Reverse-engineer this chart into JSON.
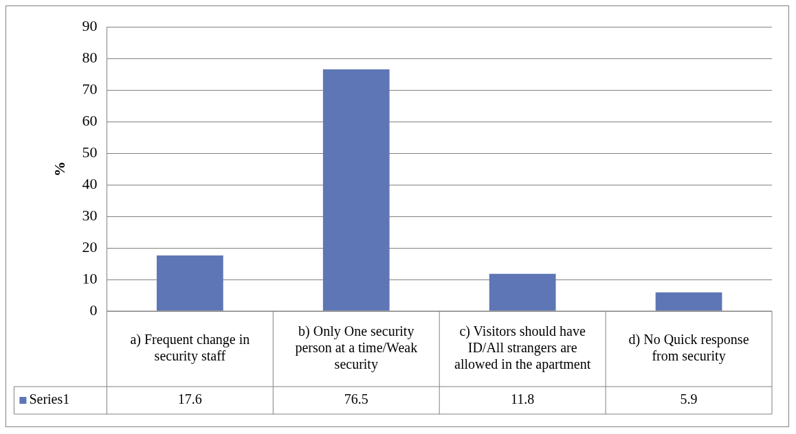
{
  "chart_data": {
    "type": "bar",
    "ylabel": "%",
    "categories": [
      "a) Frequent change in security staff",
      "b) Only One security person at a time/Weak security",
      "c) Visitors should have ID/All strangers are allowed in the apartment",
      "d) No Quick response from security"
    ],
    "series": [
      {
        "name": "Series1",
        "color": "#5e76b5",
        "values": [
          17.6,
          76.5,
          11.8,
          5.9
        ]
      }
    ],
    "ylim": [
      0,
      90
    ],
    "yticks": [
      0,
      10,
      20,
      30,
      40,
      50,
      60,
      70,
      80,
      90
    ],
    "grid": "y",
    "data_labels": true,
    "legend": "bottom left"
  }
}
